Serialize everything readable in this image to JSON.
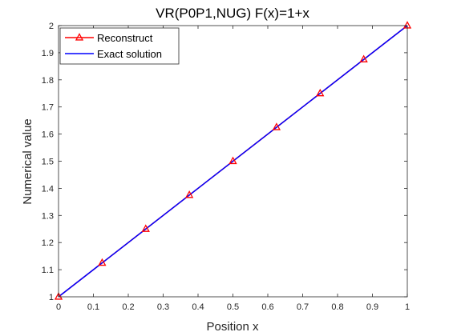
{
  "chart_data": {
    "type": "line",
    "title": "VR(P0P1,NUG) F(x)=1+x",
    "xlabel": "Position x",
    "ylabel": "Numerical value",
    "xlim": [
      0,
      1
    ],
    "ylim": [
      1,
      2
    ],
    "xticks": [
      0,
      0.1,
      0.2,
      0.3,
      0.4,
      0.5,
      0.6,
      0.7,
      0.8,
      0.9,
      1
    ],
    "xtick_labels": [
      "0",
      "0.1",
      "0.2",
      "0.3",
      "0.4",
      "0.5",
      "0.6",
      "0.7",
      "0.8",
      "0.9",
      "1"
    ],
    "yticks": [
      1,
      1.1,
      1.2,
      1.3,
      1.4,
      1.5,
      1.6,
      1.7,
      1.8,
      1.9,
      2
    ],
    "ytick_labels": [
      "1",
      "1.1",
      "1.2",
      "1.3",
      "1.4",
      "1.5",
      "1.6",
      "1.7",
      "1.8",
      "1.9",
      "2"
    ],
    "grid": false,
    "legend_position": "top-left",
    "series": [
      {
        "name": "Reconstruct",
        "color": "#ff0000",
        "marker": "triangle",
        "x": [
          0,
          0.125,
          0.25,
          0.375,
          0.5,
          0.625,
          0.75,
          0.875,
          1
        ],
        "y": [
          1,
          1.125,
          1.25,
          1.375,
          1.5,
          1.625,
          1.75,
          1.875,
          2
        ]
      },
      {
        "name": "Exact solution",
        "color": "#0000ff",
        "marker": "none",
        "x": [
          0,
          1
        ],
        "y": [
          1,
          2
        ]
      }
    ]
  }
}
